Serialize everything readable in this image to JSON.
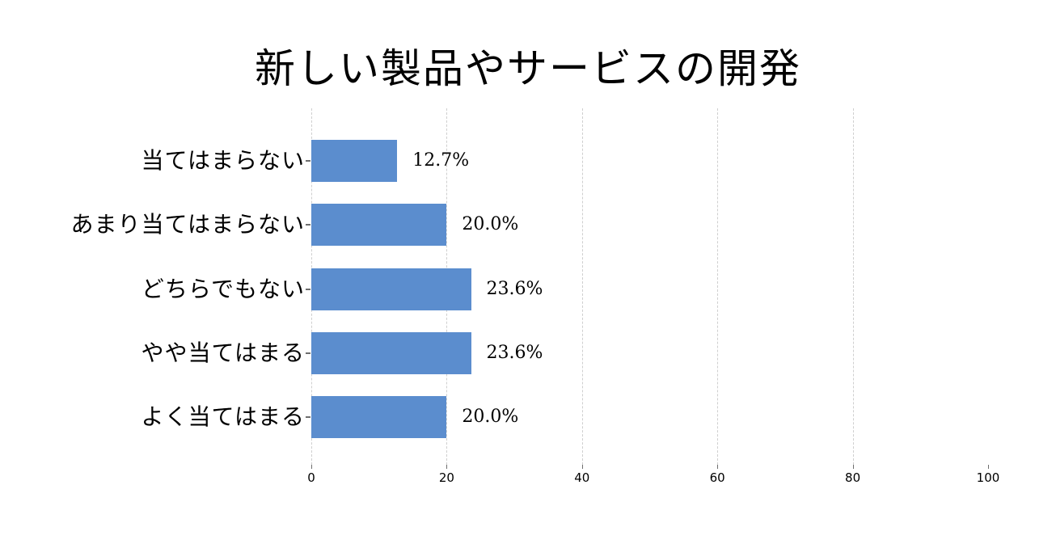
{
  "page": {
    "background_color": "#ffffff"
  },
  "chart_data": {
    "type": "bar",
    "orientation": "horizontal",
    "title": "新しい製品やサービスの開発",
    "xlabel": "",
    "ylabel": "",
    "categories": [
      "当てはまらない",
      "あまり当てはまらない",
      "どちらでもない",
      "やや当てはまる",
      "よく当てはまる"
    ],
    "values": [
      12.7,
      20.0,
      23.6,
      23.6,
      20.0
    ],
    "value_labels": [
      "12.7%",
      "20.0%",
      "23.6%",
      "23.6%",
      "20.0%"
    ],
    "xlim": [
      0,
      100
    ],
    "xtick_values": [
      0,
      20,
      40,
      60,
      80,
      100
    ],
    "xtick_labels": [
      "0",
      "20",
      "40",
      "60",
      "80",
      "100"
    ],
    "gridline_ticks": [
      0,
      20,
      40,
      60,
      80
    ],
    "grid": "dashed-vertical",
    "legend": "none",
    "bar_color": "#5b8dce",
    "gridline_color": "#cfcfcf",
    "tick_color": "#6e6e6e",
    "text_color": "#000000"
  }
}
